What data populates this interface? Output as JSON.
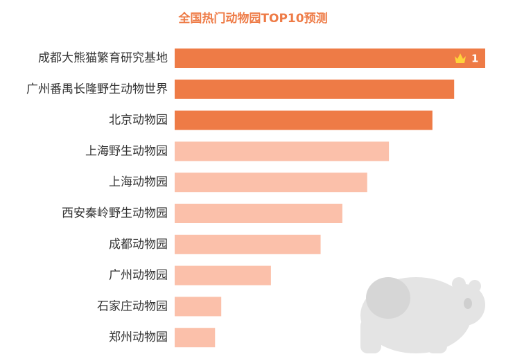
{
  "chart_data": {
    "type": "hbar",
    "title": "全国热门动物园TOP10预测",
    "categories": [
      "成都大熊猫繁育研究基地",
      "广州番禺长隆野生动物世界",
      "北京动物园",
      "上海野生动物园",
      "上海动物园",
      "西安秦岭野生动物园",
      "成都动物园",
      "广州动物园",
      "石家庄动物园",
      "郑州动物园"
    ],
    "values": [
      100,
      90,
      83,
      69,
      62,
      54,
      47,
      31,
      15,
      13
    ],
    "colors": [
      "#ee7b46",
      "#ee7b46",
      "#ee7b46",
      "#fbc0aa",
      "#fbc0aa",
      "#fbc0aa",
      "#fbc0aa",
      "#fbc0aa",
      "#fbc0aa",
      "#fbc0aa"
    ],
    "rank_label": "1"
  }
}
